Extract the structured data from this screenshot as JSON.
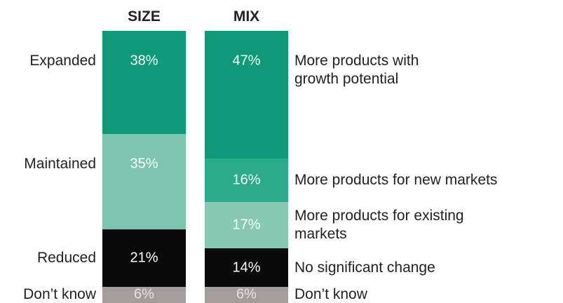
{
  "chart_data": [
    {
      "type": "bar",
      "stacked": true,
      "title": "SIZE",
      "label_side": "left",
      "categories": [
        "Expanded",
        "Maintained",
        "Reduced",
        "Don’t know"
      ],
      "values": [
        38,
        35,
        21,
        6
      ],
      "value_labels": [
        "38%",
        "35%",
        "21%",
        "6%"
      ],
      "colors": [
        "#0e9a78",
        "#7dc5ae",
        "#0a0a0a",
        "#a49d9d"
      ],
      "ylim": [
        0,
        100
      ]
    },
    {
      "type": "bar",
      "stacked": true,
      "title": "MIX",
      "label_side": "right",
      "categories": [
        "More products with\ngrowth potential",
        "More products for new markets",
        "More products for existing\nmarkets",
        "No significant change",
        "Don’t know"
      ],
      "values": [
        47,
        16,
        17,
        14,
        6
      ],
      "value_labels": [
        "47%",
        "16%",
        "17%",
        "14%",
        "6%"
      ],
      "colors": [
        "#0e9a78",
        "#2aab8a",
        "#86cab4",
        "#0a0a0a",
        "#a49d9d"
      ],
      "ylim": [
        0,
        100
      ]
    }
  ]
}
